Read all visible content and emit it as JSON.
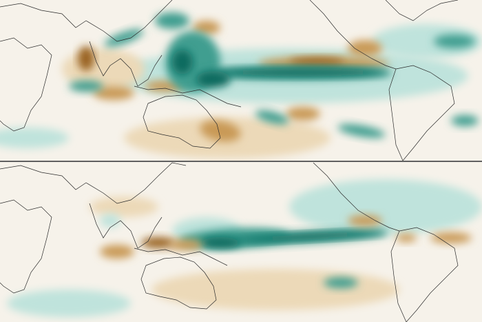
{
  "map": {
    "background": "#f6f2ea",
    "colors": {
      "wet-strong": "#0b6b5f",
      "wet": "#3f9e90",
      "wet-light": "#bfe3dc",
      "dry-strong": "#9a6420",
      "dry": "#c99a56",
      "dry-light": "#ecd9b8"
    },
    "coast_color": "#2b2b2b"
  }
}
